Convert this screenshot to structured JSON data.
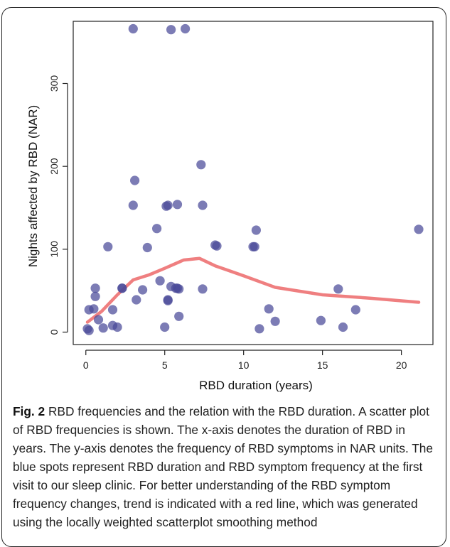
{
  "chart_data": {
    "type": "scatter",
    "xlabel": "RBD duration (years)",
    "ylabel": "Nights affected by RBD (NAR)",
    "xlim": [
      -0.8,
      22
    ],
    "ylim": [
      -15,
      375
    ],
    "xticks": [
      0,
      5,
      10,
      15,
      20
    ],
    "yticks": [
      0,
      100,
      200,
      300
    ],
    "grid": false,
    "colors": {
      "points": "#4a4a98",
      "trend": "#ef7f80"
    },
    "series": [
      {
        "type": "scatter",
        "points": [
          {
            "x": 3.0,
            "y": 366
          },
          {
            "x": 5.4,
            "y": 365
          },
          {
            "x": 6.3,
            "y": 366
          },
          {
            "x": 7.3,
            "y": 202
          },
          {
            "x": 3.1,
            "y": 183
          },
          {
            "x": 3.0,
            "y": 153
          },
          {
            "x": 5.1,
            "y": 152
          },
          {
            "x": 5.2,
            "y": 153
          },
          {
            "x": 5.8,
            "y": 154
          },
          {
            "x": 7.4,
            "y": 153
          },
          {
            "x": 4.5,
            "y": 125
          },
          {
            "x": 10.8,
            "y": 123
          },
          {
            "x": 21.1,
            "y": 124
          },
          {
            "x": 1.4,
            "y": 103
          },
          {
            "x": 3.9,
            "y": 102
          },
          {
            "x": 8.2,
            "y": 105
          },
          {
            "x": 8.3,
            "y": 104
          },
          {
            "x": 10.6,
            "y": 103
          },
          {
            "x": 10.7,
            "y": 103
          },
          {
            "x": 4.7,
            "y": 62
          },
          {
            "x": 5.4,
            "y": 55
          },
          {
            "x": 5.7,
            "y": 53
          },
          {
            "x": 5.8,
            "y": 53
          },
          {
            "x": 5.9,
            "y": 52
          },
          {
            "x": 0.6,
            "y": 53
          },
          {
            "x": 2.3,
            "y": 53
          },
          {
            "x": 2.3,
            "y": 53
          },
          {
            "x": 3.6,
            "y": 51
          },
          {
            "x": 7.4,
            "y": 52
          },
          {
            "x": 16.0,
            "y": 52
          },
          {
            "x": 0.6,
            "y": 43
          },
          {
            "x": 3.2,
            "y": 39
          },
          {
            "x": 5.2,
            "y": 39
          },
          {
            "x": 5.2,
            "y": 38
          },
          {
            "x": 0.2,
            "y": 27
          },
          {
            "x": 0.5,
            "y": 28
          },
          {
            "x": 1.7,
            "y": 27
          },
          {
            "x": 11.6,
            "y": 28
          },
          {
            "x": 17.1,
            "y": 27
          },
          {
            "x": 5.9,
            "y": 19
          },
          {
            "x": 0.8,
            "y": 15
          },
          {
            "x": 12.0,
            "y": 13
          },
          {
            "x": 14.9,
            "y": 14
          },
          {
            "x": 1.7,
            "y": 8
          },
          {
            "x": 2.0,
            "y": 6
          },
          {
            "x": 1.1,
            "y": 5
          },
          {
            "x": 5.0,
            "y": 6
          },
          {
            "x": 11.0,
            "y": 4
          },
          {
            "x": 16.3,
            "y": 6
          },
          {
            "x": 0.1,
            "y": 4
          },
          {
            "x": 0.2,
            "y": 2
          }
        ]
      },
      {
        "type": "line",
        "points": [
          {
            "x": 0.1,
            "y": 12
          },
          {
            "x": 1.0,
            "y": 25
          },
          {
            "x": 2.0,
            "y": 45
          },
          {
            "x": 3.0,
            "y": 63
          },
          {
            "x": 4.0,
            "y": 69
          },
          {
            "x": 5.0,
            "y": 77
          },
          {
            "x": 6.2,
            "y": 87
          },
          {
            "x": 7.2,
            "y": 89
          },
          {
            "x": 8.2,
            "y": 80
          },
          {
            "x": 10.0,
            "y": 68
          },
          {
            "x": 12.0,
            "y": 54
          },
          {
            "x": 15.0,
            "y": 45
          },
          {
            "x": 18.0,
            "y": 41
          },
          {
            "x": 21.1,
            "y": 36
          }
        ]
      }
    ]
  },
  "caption": {
    "label": "Fig. 2",
    "text": "RBD frequencies and the relation with the RBD duration. A scatter plot of RBD frequencies is shown. The x-axis denotes the duration of RBD in years. The y-axis denotes the frequency of RBD symptoms in NAR units. The blue spots represent RBD duration and RBD symptom frequency at the first visit to our sleep clinic. For better understanding of the RBD symptom frequency changes, trend is indicated with a red line, which was generated using the locally weighted scatterplot smoothing method"
  }
}
